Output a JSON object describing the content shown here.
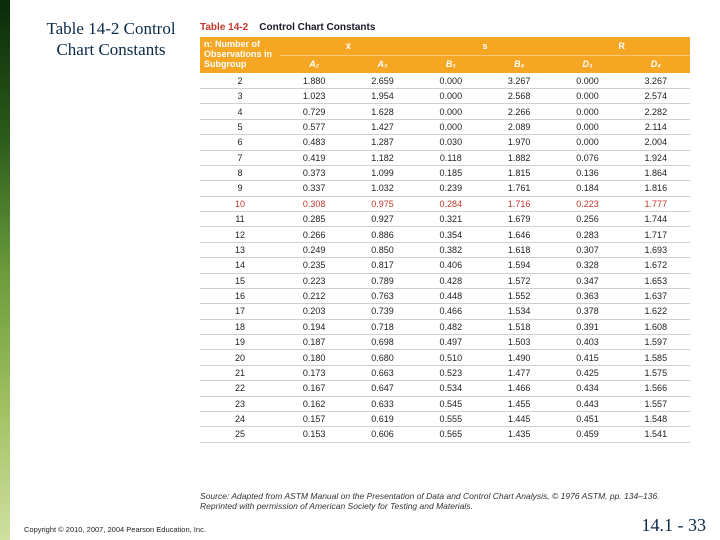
{
  "slide_title": "Table 14-2 Control Chart Constants",
  "caption_red": "Table 14-2",
  "caption_black": "Control Chart Constants",
  "header": {
    "n_label": "n: Number of\nObservations\nin Subgroup",
    "xbar_label": "x̅",
    "s_label": "s",
    "R_label": "R",
    "A2": "A₂",
    "A3": "A₃",
    "B3": "B₃",
    "B4": "B₄",
    "D3": "D₃",
    "D4": "D₄"
  },
  "rows": [
    {
      "n": "2",
      "A2": "1.880",
      "A3": "2.659",
      "B3": "0.000",
      "B4": "3.267",
      "D3": "0.000",
      "D4": "3.267"
    },
    {
      "n": "3",
      "A2": "1.023",
      "A3": "1.954",
      "B3": "0.000",
      "B4": "2.568",
      "D3": "0.000",
      "D4": "2.574"
    },
    {
      "n": "4",
      "A2": "0.729",
      "A3": "1.628",
      "B3": "0.000",
      "B4": "2.266",
      "D3": "0.000",
      "D4": "2.282"
    },
    {
      "n": "5",
      "A2": "0.577",
      "A3": "1.427",
      "B3": "0.000",
      "B4": "2.089",
      "D3": "0.000",
      "D4": "2.114"
    },
    {
      "n": "6",
      "A2": "0.483",
      "A3": "1.287",
      "B3": "0.030",
      "B4": "1.970",
      "D3": "0.000",
      "D4": "2.004"
    },
    {
      "n": "7",
      "A2": "0.419",
      "A3": "1.182",
      "B3": "0.118",
      "B4": "1.882",
      "D3": "0.076",
      "D4": "1.924"
    },
    {
      "n": "8",
      "A2": "0.373",
      "A3": "1.099",
      "B3": "0.185",
      "B4": "1.815",
      "D3": "0.136",
      "D4": "1.864"
    },
    {
      "n": "9",
      "A2": "0.337",
      "A3": "1.032",
      "B3": "0.239",
      "B4": "1.761",
      "D3": "0.184",
      "D4": "1.816"
    },
    {
      "n": "10",
      "A2": "0.308",
      "A3": "0.975",
      "B3": "0.284",
      "B4": "1.716",
      "D3": "0.223",
      "D4": "1.777",
      "red": true
    },
    {
      "n": "11",
      "A2": "0.285",
      "A3": "0.927",
      "B3": "0.321",
      "B4": "1.679",
      "D3": "0.256",
      "D4": "1.744"
    },
    {
      "n": "12",
      "A2": "0.266",
      "A3": "0.886",
      "B3": "0.354",
      "B4": "1.646",
      "D3": "0.283",
      "D4": "1.717"
    },
    {
      "n": "13",
      "A2": "0.249",
      "A3": "0.850",
      "B3": "0.382",
      "B4": "1.618",
      "D3": "0.307",
      "D4": "1.693"
    },
    {
      "n": "14",
      "A2": "0.235",
      "A3": "0.817",
      "B3": "0.406",
      "B4": "1.594",
      "D3": "0.328",
      "D4": "1.672"
    },
    {
      "n": "15",
      "A2": "0.223",
      "A3": "0.789",
      "B3": "0.428",
      "B4": "1.572",
      "D3": "0.347",
      "D4": "1.653"
    },
    {
      "n": "16",
      "A2": "0.212",
      "A3": "0.763",
      "B3": "0.448",
      "B4": "1.552",
      "D3": "0.363",
      "D4": "1.637"
    },
    {
      "n": "17",
      "A2": "0.203",
      "A3": "0.739",
      "B3": "0.466",
      "B4": "1.534",
      "D3": "0.378",
      "D4": "1.622"
    },
    {
      "n": "18",
      "A2": "0.194",
      "A3": "0.718",
      "B3": "0.482",
      "B4": "1.518",
      "D3": "0.391",
      "D4": "1.608"
    },
    {
      "n": "19",
      "A2": "0.187",
      "A3": "0.698",
      "B3": "0.497",
      "B4": "1.503",
      "D3": "0.403",
      "D4": "1.597"
    },
    {
      "n": "20",
      "A2": "0.180",
      "A3": "0.680",
      "B3": "0.510",
      "B4": "1.490",
      "D3": "0.415",
      "D4": "1.585"
    },
    {
      "n": "21",
      "A2": "0.173",
      "A3": "0.663",
      "B3": "0.523",
      "B4": "1.477",
      "D3": "0.425",
      "D4": "1.575"
    },
    {
      "n": "22",
      "A2": "0.167",
      "A3": "0.647",
      "B3": "0.534",
      "B4": "1.466",
      "D3": "0.434",
      "D4": "1.566"
    },
    {
      "n": "23",
      "A2": "0.162",
      "A3": "0.633",
      "B3": "0.545",
      "B4": "1.455",
      "D3": "0.443",
      "D4": "1.557"
    },
    {
      "n": "24",
      "A2": "0.157",
      "A3": "0.619",
      "B3": "0.555",
      "B4": "1.445",
      "D3": "0.451",
      "D4": "1.548"
    },
    {
      "n": "25",
      "A2": "0.153",
      "A3": "0.606",
      "B3": "0.565",
      "B4": "1.435",
      "D3": "0.459",
      "D4": "1.541"
    }
  ],
  "source": "Source: Adapted from ASTM Manual on the Presentation of Data and Control Chart Analysis, © 1976 ASTM, pp. 134–136. Reprinted with permission of American Society for Testing and Materials.",
  "copyright": "Copyright © 2010, 2007, 2004 Pearson Education, Inc.",
  "pagenum": "14.1 - 33",
  "style": {
    "header_bg": "#f5a623",
    "row_border": "#d0d0d0",
    "red_row_color": "#c0392b",
    "title_color": "#0a2a4a",
    "font_body": "Arial",
    "font_title": "Georgia"
  }
}
